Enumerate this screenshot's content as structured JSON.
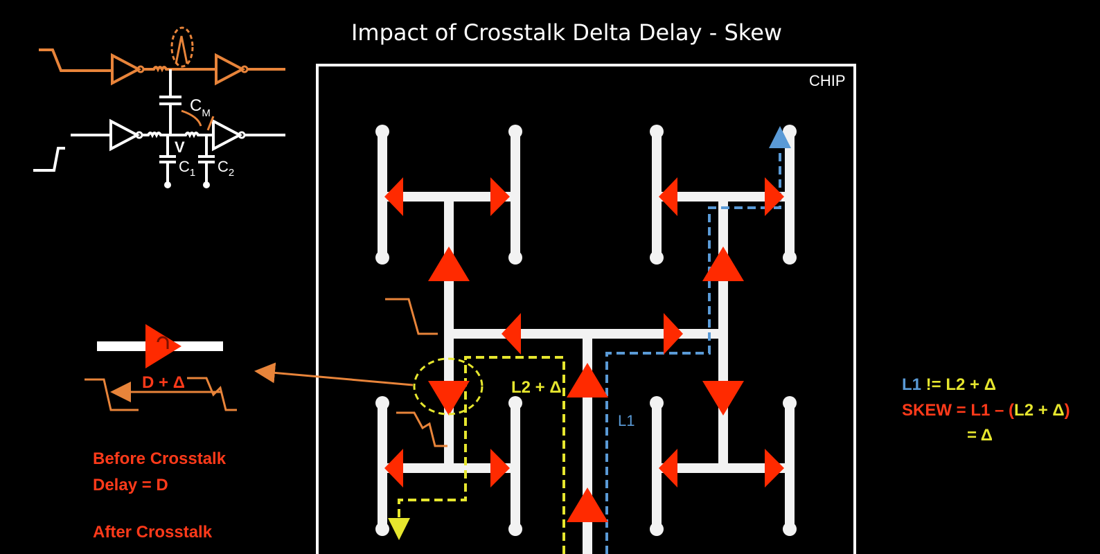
{
  "slide": {
    "title": "Impact of Crosstalk Delta Delay - Skew",
    "chip_label": "CHIP"
  },
  "circuit": {
    "cm_label": "C",
    "cm_sub": "M",
    "v_label": "V",
    "c1_label": "C",
    "c1_sub": "1",
    "c2_label": "C",
    "c2_sub": "2"
  },
  "delay_box": {
    "label": "D + Δ",
    "before_line1": "Before Crosstalk",
    "before_line2": "Delay = D",
    "after_line1": "After Crosstalk"
  },
  "paths": {
    "l2_label": "L2 + Δ",
    "l1_label": "L1"
  },
  "equations": {
    "line1_a": "L1",
    "line1_b": " != ",
    "line1_c": "L2 + Δ",
    "line2_a": "SKEW",
    "line2_b": " = L1 – (",
    "line2_c": "L2 + Δ",
    "line2_d": ")",
    "line3": "= Δ"
  },
  "colors": {
    "background": "#000000",
    "wire": "#f2f2f2",
    "buffer": "#ff2a00",
    "aggressor": "#e8843a",
    "victim_path": "#e6e62e",
    "l1_path": "#5a9ad6",
    "red_text": "#ff3a1a"
  }
}
